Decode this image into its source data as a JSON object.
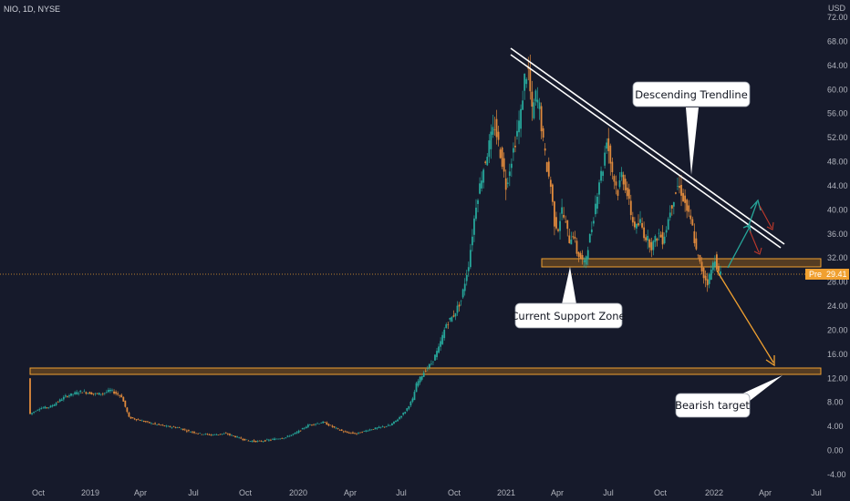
{
  "header": {
    "symbol_info": "NIO, 1D, NYSE",
    "currency": "USD"
  },
  "chart_data": {
    "type": "line",
    "series": [
      {
        "values": [
          [
            0,
            12.0
          ],
          [
            0.3,
            6.0
          ],
          [
            3,
            7.0
          ],
          [
            6,
            7.3
          ],
          [
            10,
            9.0
          ],
          [
            14,
            9.8
          ],
          [
            18,
            9.4
          ],
          [
            20,
            9.5
          ],
          [
            22,
            10.0
          ],
          [
            25,
            9.0
          ],
          [
            27,
            5.5
          ],
          [
            30,
            5.0
          ],
          [
            33,
            4.5
          ],
          [
            37,
            4.0
          ],
          [
            40,
            3.8
          ],
          [
            43,
            3.2
          ],
          [
            46,
            2.8
          ],
          [
            49,
            2.6
          ],
          [
            53,
            2.8
          ],
          [
            56,
            2.2
          ],
          [
            59,
            1.6
          ],
          [
            62,
            1.5
          ],
          [
            66,
            1.9
          ],
          [
            69,
            2.2
          ],
          [
            72,
            3.0
          ],
          [
            75,
            4.2
          ],
          [
            79,
            4.7
          ],
          [
            82,
            3.8
          ],
          [
            85,
            3.0
          ],
          [
            88,
            2.8
          ],
          [
            91,
            3.4
          ],
          [
            94,
            3.8
          ],
          [
            97,
            4.2
          ],
          [
            99,
            5.2
          ],
          [
            101,
            6.5
          ],
          [
            103,
            8.5
          ],
          [
            104,
            11.0
          ],
          [
            106,
            13.0
          ],
          [
            108,
            14.5
          ],
          [
            110,
            17.0
          ],
          [
            112,
            21.0
          ],
          [
            114,
            22.5
          ],
          [
            116,
            25.0
          ],
          [
            118,
            31.0
          ],
          [
            119,
            36.0
          ],
          [
            120,
            41.0
          ],
          [
            122,
            47.0
          ],
          [
            124,
            52.0
          ],
          [
            125,
            54.0
          ],
          [
            127,
            48.0
          ],
          [
            128,
            44.0
          ],
          [
            130,
            50.0
          ],
          [
            132,
            56.0
          ],
          [
            133,
            62.0
          ],
          [
            134,
            63.0
          ],
          [
            135,
            56.0
          ],
          [
            136,
            59.0
          ],
          [
            137,
            57.0
          ],
          [
            138,
            51.0
          ],
          [
            139,
            47.0
          ],
          [
            140,
            44.0
          ],
          [
            141,
            38.0
          ],
          [
            142,
            37.0
          ],
          [
            143,
            40.0
          ],
          [
            145,
            35.0
          ],
          [
            146,
            36.0
          ],
          [
            147,
            33.0
          ],
          [
            148,
            32.0
          ],
          [
            149,
            31.0
          ],
          [
            150,
            34.0
          ],
          [
            151,
            37.0
          ],
          [
            152,
            41.0
          ],
          [
            153,
            45.0
          ],
          [
            154,
            47.0
          ],
          [
            155,
            52.0
          ],
          [
            156,
            48.0
          ],
          [
            157,
            45.0
          ],
          [
            158,
            43.0
          ],
          [
            159,
            46.0
          ],
          [
            160,
            44.0
          ],
          [
            161,
            41.0
          ],
          [
            162,
            38.0
          ],
          [
            163,
            37.0
          ],
          [
            164,
            38.0
          ],
          [
            165,
            36.0
          ],
          [
            166,
            35.0
          ],
          [
            167,
            34.0
          ],
          [
            168,
            35.0
          ],
          [
            169,
            36.0
          ],
          [
            170,
            35.0
          ],
          [
            171,
            37.0
          ],
          [
            172,
            40.0
          ],
          [
            173,
            42.0
          ],
          [
            174,
            44.0
          ],
          [
            175,
            43.0
          ],
          [
            176,
            41.0
          ],
          [
            177,
            39.0
          ],
          [
            178,
            37.0
          ],
          [
            179,
            33.0
          ],
          [
            180,
            31.0
          ],
          [
            181,
            29.0
          ],
          [
            182,
            28.0
          ],
          [
            183,
            30.0
          ],
          [
            184,
            32.0
          ],
          [
            185,
            29.4
          ]
        ]
      }
    ],
    "x_ticks": [
      "Oct",
      "2019",
      "Apr",
      "Jul",
      "Oct",
      "2020",
      "Apr",
      "Jul",
      "Oct",
      "2021",
      "Apr",
      "Jul",
      "Oct",
      "2022",
      "Apr",
      "Jul"
    ],
    "y_ticks": [
      "-4.00",
      "0.00",
      "4.00",
      "8.00",
      "12.00",
      "16.00",
      "20.00",
      "24.00",
      "28.00",
      "32.00",
      "36.00",
      "40.00",
      "44.00",
      "48.00",
      "52.00",
      "56.00",
      "60.00",
      "64.00",
      "68.00",
      "72.00"
    ],
    "ylim": [
      -4,
      72
    ],
    "grid": false,
    "last_price": {
      "label": "Pre",
      "value": "29.41"
    },
    "annotations": {
      "descending_trendline": "Descending Trendline",
      "current_support_zone": "Current Support Zone",
      "bearish_target": "Bearish target"
    },
    "colors": {
      "background": "#161a2b",
      "up": "#26a69a",
      "down": "#e08a3c",
      "zone_fill": "#8a5a1c",
      "zone_stroke": "#f0a030",
      "trendline": "#ffffff",
      "price_tag": "#f0a030"
    }
  }
}
